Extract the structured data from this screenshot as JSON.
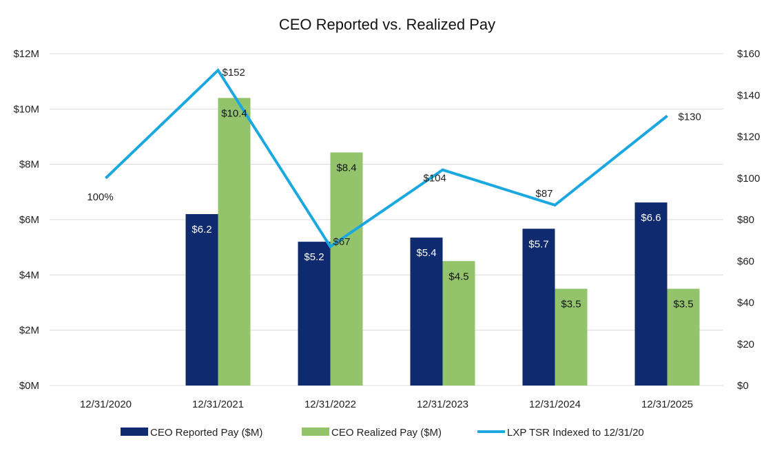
{
  "chart_data": {
    "type": "bar",
    "title": "CEO Reported vs. Realized Pay",
    "categories": [
      "12/31/2020",
      "12/31/2021",
      "12/31/2022",
      "12/31/2023",
      "12/31/2024",
      "12/31/2025"
    ],
    "y_left": {
      "min": 0,
      "max": 12,
      "step": 2,
      "tick_labels": [
        "$0M",
        "$2M",
        "$4M",
        "$6M",
        "$8M",
        "$10M",
        "$12M"
      ]
    },
    "y_right": {
      "min": 0,
      "max": 160,
      "step": 20,
      "tick_labels": [
        "$0",
        "$20",
        "$40",
        "$60",
        "$80",
        "$100",
        "$120",
        "$140",
        "$160"
      ]
    },
    "grid": true,
    "legend_position": "bottom",
    "series": [
      {
        "name": "CEO Reported Pay ($M)",
        "kind": "bar",
        "axis": "left",
        "color": "#0f2a6e",
        "label_color": "#ffffff",
        "values": [
          null,
          6.2,
          5.2,
          5.35,
          5.67,
          6.62
        ],
        "labels": [
          "",
          "$6.2",
          "$5.2",
          "$5.4",
          "$5.7",
          "$6.6"
        ]
      },
      {
        "name": "CEO Realized Pay ($M)",
        "kind": "bar",
        "axis": "left",
        "color": "#93c46b",
        "label_color": "#111111",
        "values": [
          null,
          10.4,
          8.43,
          4.5,
          3.5,
          3.5
        ],
        "labels": [
          "",
          "$10.4",
          "$8.4",
          "$4.5",
          "$3.5",
          "$3.5"
        ]
      },
      {
        "name": "LXP TSR Indexed to 12/31/20",
        "kind": "line",
        "axis": "right",
        "color": "#1ba7e0",
        "label_color": "#222222",
        "values": [
          100,
          152,
          67,
          104,
          87,
          130
        ],
        "labels": [
          "100%",
          "$152",
          "$67",
          "$104",
          "$87",
          "$130"
        ]
      }
    ]
  }
}
